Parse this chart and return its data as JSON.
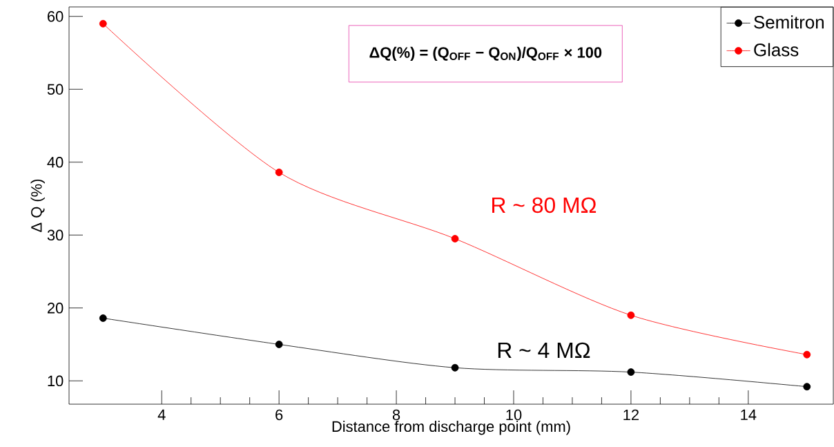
{
  "chart_data": {
    "type": "line",
    "xlabel": "Distance from discharge point (mm)",
    "ylabel": "Δ Q (%)",
    "x": [
      3,
      6,
      9,
      12,
      15
    ],
    "series": [
      {
        "name": "Semitron",
        "color": "#000000",
        "values": [
          18.6,
          15.0,
          11.8,
          11.2,
          9.2
        ]
      },
      {
        "name": "Glass",
        "color": "#ff0000",
        "values": [
          59.0,
          38.6,
          29.5,
          19.0,
          13.6
        ]
      }
    ],
    "xlim": [
      2.42,
      15.45
    ],
    "ylim": [
      6.8,
      61.3
    ],
    "xticks": [
      4,
      6,
      8,
      10,
      12,
      14
    ],
    "yticks": [
      10,
      20,
      30,
      40,
      50,
      60
    ],
    "annotations": [
      "ΔQ(%) = (Q$_{OFF}$ − Q$_{ON}$)/Q$_{OFF}$ × 100",
      "R ~ 80 MΩ",
      "R ~ 4 MΩ"
    ],
    "grid": false,
    "legend": "top right",
    "marker": "circle",
    "line_style": "solid"
  }
}
